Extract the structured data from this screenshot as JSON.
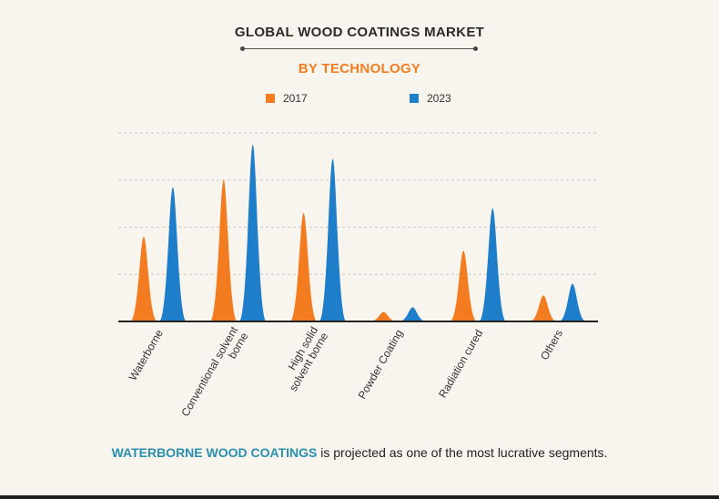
{
  "title": "GLOBAL WOOD COATINGS MARKET",
  "subtitle": "BY TECHNOLOGY",
  "colors": {
    "series_2017": "#f47c20",
    "series_2023": "#1f7ec9",
    "accent": "#2a8fae"
  },
  "footer": {
    "highlight": "WATERBORNE WOOD COATINGS",
    "rest": " is projected as one of the most lucrative segments."
  },
  "chart_data": {
    "type": "area",
    "title": "GLOBAL WOOD COATINGS MARKET",
    "subtitle": "BY TECHNOLOGY",
    "categories": [
      [
        "Waterborne"
      ],
      [
        "Conventional solvent",
        "borne"
      ],
      [
        "High solid",
        "solvent borne"
      ],
      [
        "Powder Coating"
      ],
      [
        "Radiation cured"
      ],
      [
        "Others"
      ]
    ],
    "series": [
      {
        "name": "2017",
        "values": [
          1.8,
          3.0,
          2.3,
          0.2,
          1.5,
          0.55
        ]
      },
      {
        "name": "2023",
        "values": [
          2.85,
          3.75,
          3.45,
          0.3,
          2.4,
          0.8
        ]
      }
    ],
    "ylim": [
      0,
      4
    ],
    "grid": true,
    "legend": "top-center",
    "xlabel": "",
    "ylabel": ""
  }
}
